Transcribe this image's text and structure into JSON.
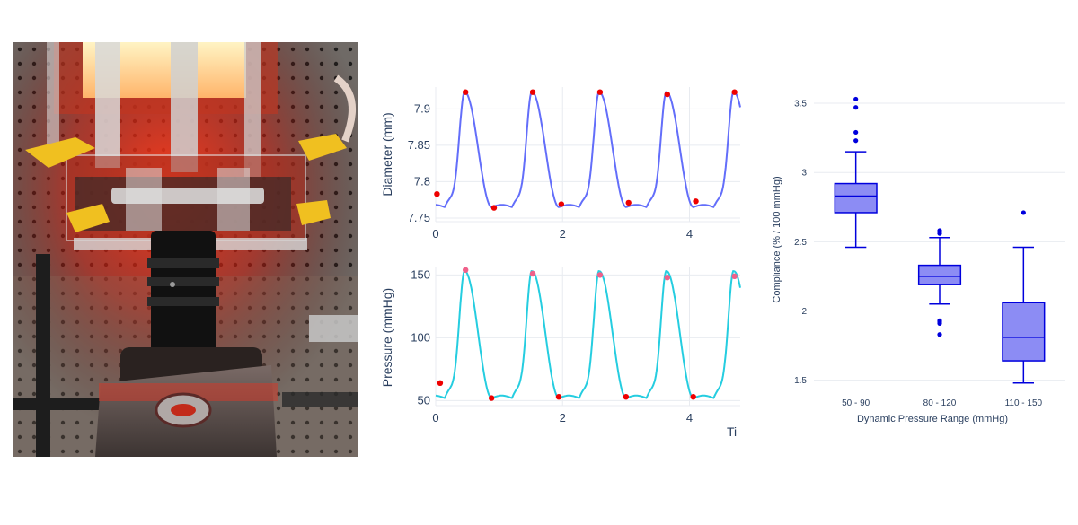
{
  "photo": {
    "description_icon": "bioreactor-camera-photo"
  },
  "chart_data": [
    {
      "type": "line",
      "xlabel": "",
      "ylabel": "Diameter (mm)",
      "xlim": [
        0,
        4.8
      ],
      "ylim": [
        7.745,
        7.93
      ],
      "xticks": [
        0,
        2,
        4
      ],
      "yticks": [
        7.75,
        7.8,
        7.85,
        7.9
      ],
      "ytick_labels": [
        "7.75",
        "7.8",
        "7.85",
        "7.9"
      ],
      "period": 1.06,
      "first_peak": 0.46,
      "series": [
        {
          "color": "#636efa",
          "base": 7.765,
          "amplitude": 0.158
        }
      ],
      "peak_markers": [
        {
          "x": 0.47,
          "y": 7.923
        },
        {
          "x": 1.53,
          "y": 7.923
        },
        {
          "x": 2.59,
          "y": 7.923
        },
        {
          "x": 3.65,
          "y": 7.92
        },
        {
          "x": 4.71,
          "y": 7.923
        }
      ],
      "trough_markers": [
        {
          "x": 0.02,
          "y": 7.783
        },
        {
          "x": 0.92,
          "y": 7.764
        },
        {
          "x": 1.98,
          "y": 7.769
        },
        {
          "x": 3.04,
          "y": 7.771
        },
        {
          "x": 4.1,
          "y": 7.773
        }
      ],
      "marker_color": "#ee0000",
      "grid": true
    },
    {
      "type": "line",
      "xlabel": "Ti",
      "ylabel": "Pressure (mmHg)",
      "xlim": [
        0,
        4.8
      ],
      "ylim": [
        46,
        156
      ],
      "xticks": [
        0,
        2,
        4
      ],
      "yticks": [
        50,
        100,
        150
      ],
      "ytick_labels": [
        "50",
        "100",
        "150"
      ],
      "period": 1.06,
      "first_peak": 0.46,
      "series": [
        {
          "color": "#25cde0",
          "base": 52,
          "amplitude": 101
        }
      ],
      "peak_markers": [
        {
          "x": 0.47,
          "y": 154
        },
        {
          "x": 1.53,
          "y": 151
        },
        {
          "x": 2.59,
          "y": 150
        },
        {
          "x": 3.65,
          "y": 148
        },
        {
          "x": 4.71,
          "y": 149
        }
      ],
      "trough_markers": [
        {
          "x": 0.07,
          "y": 64
        },
        {
          "x": 0.88,
          "y": 52
        },
        {
          "x": 1.94,
          "y": 53
        },
        {
          "x": 3.0,
          "y": 53
        },
        {
          "x": 4.06,
          "y": 53
        }
      ],
      "peak_marker_color": "#f0608a",
      "trough_marker_color": "#ee0000",
      "grid": true
    },
    {
      "type": "box",
      "xlabel": "Dynamic Pressure Range (mmHg)",
      "ylabel": "Compliance (% / 100 mmHg)",
      "ylim": [
        1.42,
        3.63
      ],
      "yticks": [
        1.5,
        2,
        2.5,
        3,
        3.5
      ],
      "ytick_labels": [
        "1.5",
        "2",
        "2.5",
        "3",
        "3.5"
      ],
      "categories": [
        "50 - 90",
        "80 - 120",
        "110 - 150"
      ],
      "color": "#0000dd",
      "fill": "#8c8cf4",
      "boxes": [
        {
          "q1": 2.71,
          "median": 2.83,
          "q3": 2.92,
          "lower_fence": 2.46,
          "upper_fence": 3.15,
          "outliers": [
            3.23,
            3.29,
            3.47,
            3.53
          ]
        },
        {
          "q1": 2.19,
          "median": 2.25,
          "q3": 2.33,
          "lower_fence": 2.05,
          "upper_fence": 2.53,
          "outliers": [
            2.56,
            2.58,
            1.93,
            1.91,
            1.92,
            1.83
          ]
        },
        {
          "q1": 1.64,
          "median": 1.81,
          "q3": 2.06,
          "lower_fence": 1.48,
          "upper_fence": 2.46,
          "outliers": [
            2.71
          ]
        }
      ],
      "grid": true
    }
  ]
}
